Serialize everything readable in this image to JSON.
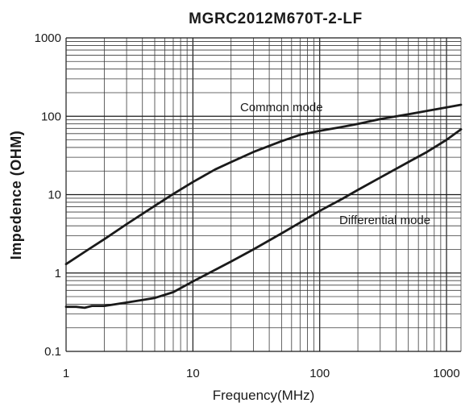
{
  "chart_data": {
    "type": "line",
    "title": "MGRC2012M670T-2-LF",
    "xlabel": "Frequency(MHz)",
    "ylabel": "Impedence  (OHM)",
    "x_scale": "log",
    "y_scale": "log",
    "xlim": [
      1,
      1300
    ],
    "ylim": [
      0.1,
      1000
    ],
    "grid": true,
    "x_ticks": [
      "1",
      "10",
      "100",
      "1000"
    ],
    "y_ticks": [
      "0.1",
      "1",
      "10",
      "100",
      "1000"
    ],
    "series": [
      {
        "name": "Common mode",
        "x": [
          1,
          1.5,
          2,
          3,
          5,
          7,
          10,
          15,
          20,
          30,
          50,
          70,
          100,
          150,
          200,
          300,
          500,
          700,
          1000,
          1300
        ],
        "y": [
          1.3,
          2.0,
          2.7,
          4.2,
          7.2,
          10.2,
          14.5,
          21,
          26,
          35,
          48,
          58,
          65,
          73,
          80,
          92,
          106,
          117,
          130,
          140
        ]
      },
      {
        "name": "Differential mode",
        "x": [
          1,
          1.2,
          1.4,
          1.6,
          1.8,
          2,
          3,
          5,
          7,
          10,
          15,
          20,
          30,
          50,
          70,
          100,
          150,
          200,
          300,
          500,
          700,
          1000,
          1300
        ],
        "y": [
          0.37,
          0.37,
          0.36,
          0.38,
          0.38,
          0.38,
          0.42,
          0.48,
          0.57,
          0.78,
          1.1,
          1.4,
          2.0,
          3.2,
          4.4,
          6.2,
          8.8,
          11.5,
          16.5,
          26,
          35,
          50,
          68
        ]
      }
    ]
  }
}
